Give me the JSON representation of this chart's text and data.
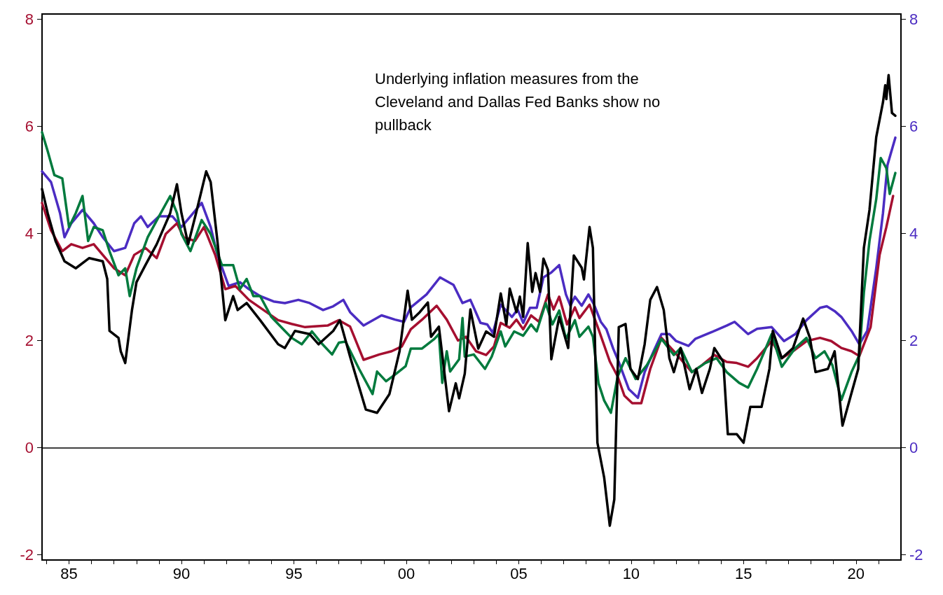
{
  "chart_data": {
    "type": "line",
    "annotations": [
      "Underlying inflation measures from the Cleveland and Dallas Fed Banks show no pullback"
    ],
    "xlim": [
      1983.8,
      2022.0
    ],
    "xticks": [
      {
        "value": 1984,
        "label": null
      },
      {
        "value": 1985,
        "label": "85"
      },
      {
        "value": 1986,
        "label": null
      },
      {
        "value": 1987,
        "label": null
      },
      {
        "value": 1988,
        "label": null
      },
      {
        "value": 1989,
        "label": null
      },
      {
        "value": 1990,
        "label": "90"
      },
      {
        "value": 1991,
        "label": null
      },
      {
        "value": 1992,
        "label": null
      },
      {
        "value": 1993,
        "label": null
      },
      {
        "value": 1994,
        "label": null
      },
      {
        "value": 1995,
        "label": "95"
      },
      {
        "value": 1996,
        "label": null
      },
      {
        "value": 1997,
        "label": null
      },
      {
        "value": 1998,
        "label": null
      },
      {
        "value": 1999,
        "label": null
      },
      {
        "value": 2000,
        "label": "00"
      },
      {
        "value": 2001,
        "label": null
      },
      {
        "value": 2002,
        "label": null
      },
      {
        "value": 2003,
        "label": null
      },
      {
        "value": 2004,
        "label": null
      },
      {
        "value": 2005,
        "label": "05"
      },
      {
        "value": 2006,
        "label": null
      },
      {
        "value": 2007,
        "label": null
      },
      {
        "value": 2008,
        "label": null
      },
      {
        "value": 2009,
        "label": null
      },
      {
        "value": 2010,
        "label": "10"
      },
      {
        "value": 2011,
        "label": null
      },
      {
        "value": 2012,
        "label": null
      },
      {
        "value": 2013,
        "label": null
      },
      {
        "value": 2014,
        "label": null
      },
      {
        "value": 2015,
        "label": "15"
      },
      {
        "value": 2016,
        "label": null
      },
      {
        "value": 2017,
        "label": null
      },
      {
        "value": 2018,
        "label": null
      },
      {
        "value": 2019,
        "label": null
      },
      {
        "value": 2020,
        "label": "20"
      },
      {
        "value": 2021,
        "label": null
      }
    ],
    "ylim": [
      -2.1,
      8.1
    ],
    "yticks": [
      -2,
      0,
      2,
      4,
      6,
      8
    ],
    "y2lim": [
      -2.1,
      8.1
    ],
    "y2ticks": [
      -2,
      0,
      2,
      4,
      6,
      8
    ],
    "grid": false,
    "marker": "none",
    "line_style": "solid",
    "ref_lines": [
      {
        "axis": "y",
        "value": 0,
        "label": null,
        "color": "#000000"
      }
    ],
    "series": [
      {
        "color": "#000000",
        "x": [
          1983.8,
          1984.05,
          1984.4,
          1984.8,
          1985.3,
          1985.9,
          1986.5,
          1986.7,
          1986.8,
          1987.2,
          1987.3,
          1987.5,
          1987.8,
          1988.0,
          1988.4,
          1988.9,
          1989.5,
          1989.8,
          1990.0,
          1990.3,
          1990.65,
          1991.1,
          1991.3,
          1991.6,
          1991.95,
          1992.3,
          1992.5,
          1992.9,
          1993.5,
          1994.3,
          1994.6,
          1995.05,
          1995.7,
          1996.1,
          1996.75,
          1997.05,
          1997.5,
          1998.2,
          1998.7,
          1999.25,
          1999.7,
          2000.06,
          2000.25,
          2000.6,
          2000.96,
          2001.1,
          2001.45,
          2001.9,
          2002.2,
          2002.35,
          2002.6,
          2002.85,
          2003.2,
          2003.55,
          2003.9,
          2004.2,
          2004.45,
          2004.6,
          2004.9,
          2005.05,
          2005.2,
          2005.4,
          2005.6,
          2005.75,
          2005.95,
          2006.1,
          2006.3,
          2006.45,
          2006.8,
          2007.2,
          2007.45,
          2007.8,
          2007.9,
          2008.15,
          2008.3,
          2008.4,
          2008.5,
          2008.8,
          2009.05,
          2009.25,
          2009.45,
          2009.75,
          2009.97,
          2010.3,
          2010.6,
          2010.85,
          2011.15,
          2011.45,
          2011.7,
          2011.9,
          2012.2,
          2012.6,
          2012.9,
          2013.15,
          2013.5,
          2013.7,
          2014.1,
          2014.3,
          2014.7,
          2015.0,
          2015.3,
          2015.8,
          2016.15,
          2016.3,
          2016.7,
          2017.2,
          2017.65,
          2017.95,
          2018.2,
          2018.75,
          2019.05,
          2019.4,
          2019.8,
          2020.1,
          2020.35,
          2020.6,
          2020.9,
          2021.2,
          2021.3,
          2021.35,
          2021.45,
          2021.6,
          2021.75
        ],
        "values": [
          4.83,
          4.38,
          3.86,
          3.48,
          3.35,
          3.54,
          3.48,
          3.15,
          2.18,
          2.05,
          1.8,
          1.58,
          2.57,
          3.09,
          3.41,
          3.8,
          4.38,
          4.92,
          4.38,
          3.8,
          4.38,
          5.16,
          4.96,
          3.86,
          2.38,
          2.83,
          2.57,
          2.7,
          2.38,
          1.93,
          1.86,
          2.18,
          2.12,
          1.93,
          2.18,
          2.38,
          1.7,
          0.71,
          0.65,
          1.0,
          1.8,
          2.93,
          2.39,
          2.53,
          2.71,
          2.07,
          2.26,
          0.68,
          1.2,
          0.92,
          1.38,
          2.58,
          1.85,
          2.17,
          2.07,
          2.88,
          2.3,
          2.97,
          2.53,
          2.82,
          2.44,
          3.82,
          2.91,
          3.26,
          2.91,
          3.53,
          3.32,
          1.65,
          2.44,
          1.86,
          3.59,
          3.36,
          3.14,
          4.12,
          3.73,
          1.8,
          0.09,
          -0.56,
          -1.46,
          -0.97,
          2.25,
          2.31,
          1.47,
          1.28,
          1.93,
          2.76,
          3.0,
          2.57,
          1.67,
          1.41,
          1.86,
          1.09,
          1.47,
          1.02,
          1.47,
          1.86,
          1.6,
          0.25,
          0.25,
          0.09,
          0.76,
          0.76,
          1.47,
          2.18,
          1.67,
          1.86,
          2.41,
          2.05,
          1.41,
          1.47,
          1.8,
          0.41,
          1.02,
          1.47,
          3.73,
          4.44,
          5.8,
          6.45,
          6.77,
          6.51,
          6.96,
          6.25,
          6.2
        ]
      },
      {
        "color": "#007a3d",
        "x": [
          1983.8,
          1984.05,
          1984.35,
          1984.7,
          1985.0,
          1985.3,
          1985.6,
          1985.85,
          1986.1,
          1986.5,
          1986.8,
          1987.2,
          1987.5,
          1987.7,
          1988.0,
          1988.5,
          1989.0,
          1989.5,
          1989.8,
          1990.0,
          1990.4,
          1990.9,
          1991.3,
          1991.8,
          1992.3,
          1992.6,
          1992.9,
          1993.2,
          1993.5,
          1994.0,
          1994.6,
          1994.9,
          1995.35,
          1995.8,
          1996.25,
          1996.7,
          1997.0,
          1997.3,
          1997.9,
          1998.5,
          1998.7,
          1999.1,
          1999.55,
          1999.97,
          2000.2,
          2000.7,
          2001.25,
          2001.45,
          2001.6,
          2001.8,
          2001.95,
          2002.35,
          2002.5,
          2002.6,
          2003.0,
          2003.5,
          2003.8,
          2004.2,
          2004.4,
          2004.8,
          2005.2,
          2005.55,
          2005.8,
          2006.2,
          2006.5,
          2006.8,
          2007.1,
          2007.5,
          2007.7,
          2008.1,
          2008.3,
          2008.55,
          2008.8,
          2009.1,
          2009.4,
          2009.75,
          2010.2,
          2010.7,
          2011.35,
          2011.9,
          2012.2,
          2012.7,
          2013.3,
          2013.8,
          2014.25,
          2014.8,
          2015.2,
          2015.6,
          2016.25,
          2016.7,
          2017.3,
          2017.8,
          2018.2,
          2018.6,
          2018.95,
          2019.35,
          2019.8,
          2020.15,
          2020.35,
          2020.6,
          2020.9,
          2021.1,
          2021.35,
          2021.5,
          2021.75
        ],
        "values": [
          5.89,
          5.54,
          5.09,
          5.03,
          4.12,
          4.38,
          4.7,
          3.86,
          4.12,
          4.06,
          3.67,
          3.22,
          3.35,
          2.83,
          3.35,
          3.93,
          4.32,
          4.7,
          4.38,
          3.99,
          3.67,
          4.25,
          3.99,
          3.41,
          3.41,
          2.96,
          3.15,
          2.83,
          2.83,
          2.44,
          2.18,
          2.05,
          1.93,
          2.17,
          1.94,
          1.74,
          1.96,
          1.98,
          1.47,
          1.0,
          1.42,
          1.24,
          1.38,
          1.52,
          1.85,
          1.85,
          2.03,
          2.12,
          1.21,
          1.8,
          1.42,
          1.65,
          2.42,
          1.7,
          1.74,
          1.47,
          1.7,
          2.17,
          1.89,
          2.17,
          2.09,
          2.3,
          2.17,
          2.7,
          2.3,
          2.56,
          2.03,
          2.38,
          2.07,
          2.26,
          2.07,
          1.2,
          0.88,
          0.65,
          1.33,
          1.67,
          1.28,
          1.54,
          2.03,
          1.73,
          1.86,
          1.41,
          1.58,
          1.67,
          1.41,
          1.21,
          1.12,
          1.47,
          2.12,
          1.51,
          1.86,
          2.05,
          1.67,
          1.8,
          1.54,
          0.89,
          1.41,
          1.73,
          2.89,
          3.86,
          4.64,
          5.41,
          5.22,
          4.74,
          5.13
        ]
      },
      {
        "color": "#a50f30",
        "x": [
          1983.8,
          1984.2,
          1984.7,
          1985.1,
          1985.6,
          1986.1,
          1986.5,
          1987.0,
          1987.5,
          1987.9,
          1988.4,
          1988.9,
          1989.3,
          1989.8,
          1990.1,
          1990.6,
          1991.0,
          1991.5,
          1991.95,
          1992.4,
          1993.0,
          1993.65,
          1994.3,
          1994.9,
          1995.5,
          1995.8,
          1996.5,
          1997.0,
          1997.5,
          1998.1,
          1998.8,
          1999.35,
          1999.8,
          2000.2,
          2000.7,
          2001.35,
          2001.8,
          2002.3,
          2002.65,
          2003.1,
          2003.55,
          2003.9,
          2004.2,
          2004.6,
          2004.9,
          2005.2,
          2005.55,
          2005.9,
          2006.3,
          2006.55,
          2006.8,
          2007.15,
          2007.5,
          2007.7,
          2008.15,
          2008.55,
          2009.05,
          2009.4,
          2009.7,
          2010.05,
          2010.45,
          2010.85,
          2011.35,
          2011.9,
          2012.7,
          2013.15,
          2013.7,
          2014.25,
          2014.7,
          2015.2,
          2015.6,
          2016.25,
          2016.7,
          2017.3,
          2017.8,
          2018.4,
          2018.9,
          2019.35,
          2019.8,
          2020.15,
          2020.65,
          2021.05,
          2021.35,
          2021.65
        ],
        "values": [
          4.57,
          4.06,
          3.67,
          3.8,
          3.73,
          3.8,
          3.6,
          3.35,
          3.22,
          3.6,
          3.73,
          3.54,
          3.99,
          4.19,
          3.93,
          3.86,
          4.12,
          3.6,
          2.96,
          3.02,
          2.76,
          2.57,
          2.38,
          2.31,
          2.25,
          2.26,
          2.28,
          2.38,
          2.26,
          1.64,
          1.74,
          1.8,
          1.89,
          2.21,
          2.39,
          2.65,
          2.39,
          2.0,
          2.07,
          1.8,
          1.73,
          1.89,
          2.33,
          2.24,
          2.39,
          2.21,
          2.47,
          2.35,
          2.86,
          2.58,
          2.82,
          2.3,
          2.62,
          2.42,
          2.67,
          2.21,
          1.61,
          1.33,
          0.97,
          0.83,
          0.83,
          1.47,
          2.05,
          1.8,
          1.41,
          1.54,
          1.73,
          1.6,
          1.58,
          1.51,
          1.67,
          1.99,
          1.67,
          1.83,
          1.99,
          2.05,
          1.99,
          1.86,
          1.8,
          1.71,
          2.25,
          3.6,
          4.12,
          4.7
        ]
      },
      {
        "color": "#4b2cc2",
        "axis": "y2",
        "x": [
          1983.8,
          1984.2,
          1984.6,
          1984.8,
          1985.1,
          1985.6,
          1986.1,
          1986.5,
          1987.0,
          1987.5,
          1987.9,
          1988.2,
          1988.5,
          1989.0,
          1989.6,
          1990.0,
          1990.4,
          1990.9,
          1991.3,
          1991.6,
          1992.1,
          1992.6,
          1993.0,
          1993.5,
          1994.1,
          1994.6,
          1995.2,
          1995.7,
          1996.3,
          1996.75,
          1997.2,
          1997.5,
          1998.1,
          1998.9,
          1999.5,
          1999.9,
          2000.2,
          2000.9,
          2001.5,
          2002.1,
          2002.5,
          2002.85,
          2003.3,
          2003.6,
          2003.85,
          2004.2,
          2004.7,
          2004.95,
          2005.2,
          2005.5,
          2005.8,
          2006.1,
          2006.45,
          2006.8,
          2007.1,
          2007.3,
          2007.5,
          2007.8,
          2008.1,
          2008.35,
          2008.65,
          2008.9,
          2009.2,
          2009.45,
          2009.9,
          2010.3,
          2010.6,
          2011.0,
          2011.35,
          2011.7,
          2012.0,
          2012.55,
          2012.85,
          2013.6,
          2014.25,
          2014.6,
          2015.2,
          2015.6,
          2016.25,
          2016.8,
          2017.3,
          2017.8,
          2018.4,
          2018.7,
          2019.05,
          2019.35,
          2019.8,
          2020.15,
          2020.5,
          2020.9,
          2021.2,
          2021.4,
          2021.75
        ],
        "values": [
          5.16,
          4.96,
          4.38,
          3.93,
          4.19,
          4.44,
          4.19,
          3.93,
          3.67,
          3.73,
          4.19,
          4.32,
          4.12,
          4.32,
          4.32,
          4.12,
          4.32,
          4.57,
          4.12,
          3.6,
          3.02,
          3.09,
          2.96,
          2.83,
          2.73,
          2.7,
          2.76,
          2.7,
          2.57,
          2.64,
          2.76,
          2.53,
          2.28,
          2.47,
          2.39,
          2.35,
          2.62,
          2.86,
          3.18,
          3.04,
          2.7,
          2.76,
          2.33,
          2.3,
          2.14,
          2.67,
          2.44,
          2.58,
          2.33,
          2.61,
          2.61,
          3.18,
          3.27,
          3.41,
          2.86,
          2.65,
          2.82,
          2.65,
          2.86,
          2.67,
          2.35,
          2.21,
          1.85,
          1.6,
          1.09,
          0.93,
          1.41,
          1.8,
          2.12,
          2.12,
          1.99,
          1.9,
          2.03,
          2.16,
          2.28,
          2.35,
          2.12,
          2.22,
          2.25,
          1.99,
          2.12,
          2.38,
          2.61,
          2.64,
          2.55,
          2.44,
          2.18,
          1.93,
          2.18,
          3.35,
          4.38,
          5.28,
          5.79
        ]
      }
    ]
  }
}
